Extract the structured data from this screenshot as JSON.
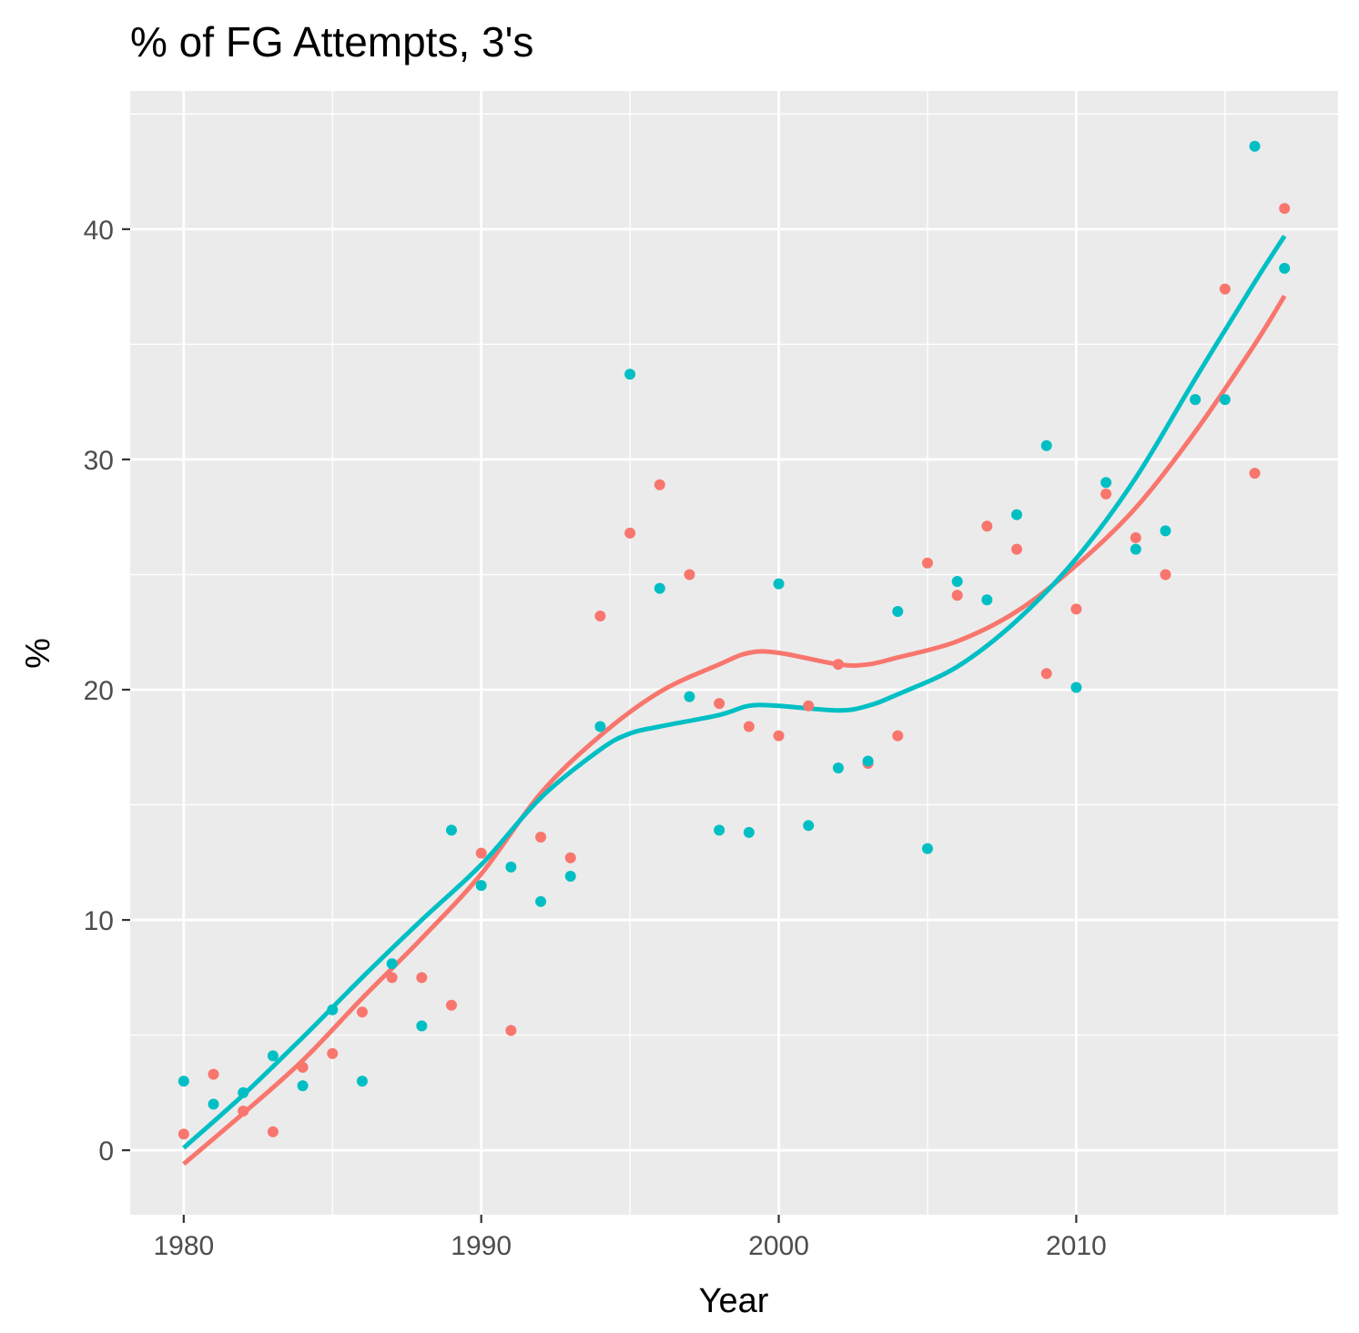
{
  "chart_data": {
    "type": "scatter",
    "title": "% of FG Attempts, 3's",
    "xlabel": "Year",
    "ylabel": "%",
    "xlim": [
      1978.2,
      2018.8
    ],
    "ylim": [
      -2.8,
      46.0
    ],
    "x_ticks": [
      1980,
      1990,
      2000,
      2010
    ],
    "y_ticks": [
      0,
      10,
      20,
      30,
      40
    ],
    "grid": true,
    "legend": "none",
    "colors": {
      "red": "#F8766D",
      "teal": "#00BFC4",
      "panel": "#EBEBEB",
      "grid": "#FFFFFF"
    },
    "series": [
      {
        "color": "#F8766D",
        "x": [
          1980,
          1981,
          1982,
          1983,
          1984,
          1985,
          1986,
          1987,
          1988,
          1989,
          1990,
          1991,
          1992,
          1993,
          1994,
          1995,
          1996,
          1997,
          1998,
          1999,
          2000,
          2001,
          2002,
          2003,
          2004,
          2005,
          2006,
          2007,
          2008,
          2009,
          2010,
          2011,
          2012,
          2013,
          2014,
          2015,
          2016,
          2017
        ],
        "y": [
          0.7,
          3.3,
          1.7,
          0.8,
          3.6,
          4.2,
          6.0,
          7.5,
          7.5,
          6.3,
          12.9,
          5.2,
          13.6,
          12.7,
          23.2,
          26.8,
          28.9,
          25.0,
          19.4,
          18.4,
          18.0,
          19.3,
          21.1,
          16.8,
          18.0,
          25.5,
          24.1,
          27.1,
          26.1,
          20.7,
          23.5,
          28.5,
          26.6,
          25.0,
          32.6,
          37.4,
          29.4,
          40.9
        ],
        "trend": [
          [
            1980,
            -0.6
          ],
          [
            1982,
            1.6
          ],
          [
            1984,
            3.9
          ],
          [
            1986,
            6.6
          ],
          [
            1988,
            9.2
          ],
          [
            1990,
            12.0
          ],
          [
            1992,
            15.5
          ],
          [
            1994,
            18.0
          ],
          [
            1996,
            19.9
          ],
          [
            1998,
            21.1
          ],
          [
            1999,
            21.6
          ],
          [
            2000,
            21.6
          ],
          [
            2002,
            21.1
          ],
          [
            2003,
            21.1
          ],
          [
            2004,
            21.4
          ],
          [
            2006,
            22.1
          ],
          [
            2008,
            23.4
          ],
          [
            2010,
            25.4
          ],
          [
            2012,
            27.9
          ],
          [
            2014,
            31.2
          ],
          [
            2016,
            35.0
          ],
          [
            2017,
            37.1
          ]
        ]
      },
      {
        "color": "#00BFC4",
        "x": [
          1980,
          1981,
          1982,
          1983,
          1984,
          1985,
          1986,
          1987,
          1988,
          1989,
          1990,
          1991,
          1992,
          1993,
          1994,
          1995,
          1996,
          1997,
          1998,
          1999,
          2000,
          2001,
          2002,
          2003,
          2004,
          2005,
          2006,
          2007,
          2008,
          2009,
          2010,
          2011,
          2012,
          2013,
          2014,
          2015,
          2016,
          2017
        ],
        "y": [
          3.0,
          2.0,
          2.5,
          4.1,
          2.8,
          6.1,
          3.0,
          8.1,
          5.4,
          13.9,
          11.5,
          12.3,
          10.8,
          11.9,
          18.4,
          33.7,
          24.4,
          19.7,
          13.9,
          13.8,
          24.6,
          14.1,
          16.6,
          16.9,
          23.4,
          13.1,
          24.7,
          23.9,
          27.6,
          30.6,
          20.1,
          29.0,
          26.1,
          26.9,
          32.6,
          32.6,
          43.6,
          38.3
        ],
        "trend": [
          [
            1980,
            0.1
          ],
          [
            1982,
            2.4
          ],
          [
            1984,
            4.9
          ],
          [
            1986,
            7.5
          ],
          [
            1988,
            10.0
          ],
          [
            1990,
            12.4
          ],
          [
            1992,
            15.3
          ],
          [
            1994,
            17.4
          ],
          [
            1995,
            18.1
          ],
          [
            1996,
            18.4
          ],
          [
            1998,
            18.9
          ],
          [
            1999,
            19.3
          ],
          [
            2000,
            19.3
          ],
          [
            2002,
            19.1
          ],
          [
            2003,
            19.3
          ],
          [
            2004,
            19.8
          ],
          [
            2006,
            21.0
          ],
          [
            2008,
            23.0
          ],
          [
            2010,
            25.7
          ],
          [
            2012,
            29.2
          ],
          [
            2014,
            33.5
          ],
          [
            2016,
            37.7
          ],
          [
            2017,
            39.7
          ]
        ]
      }
    ]
  }
}
